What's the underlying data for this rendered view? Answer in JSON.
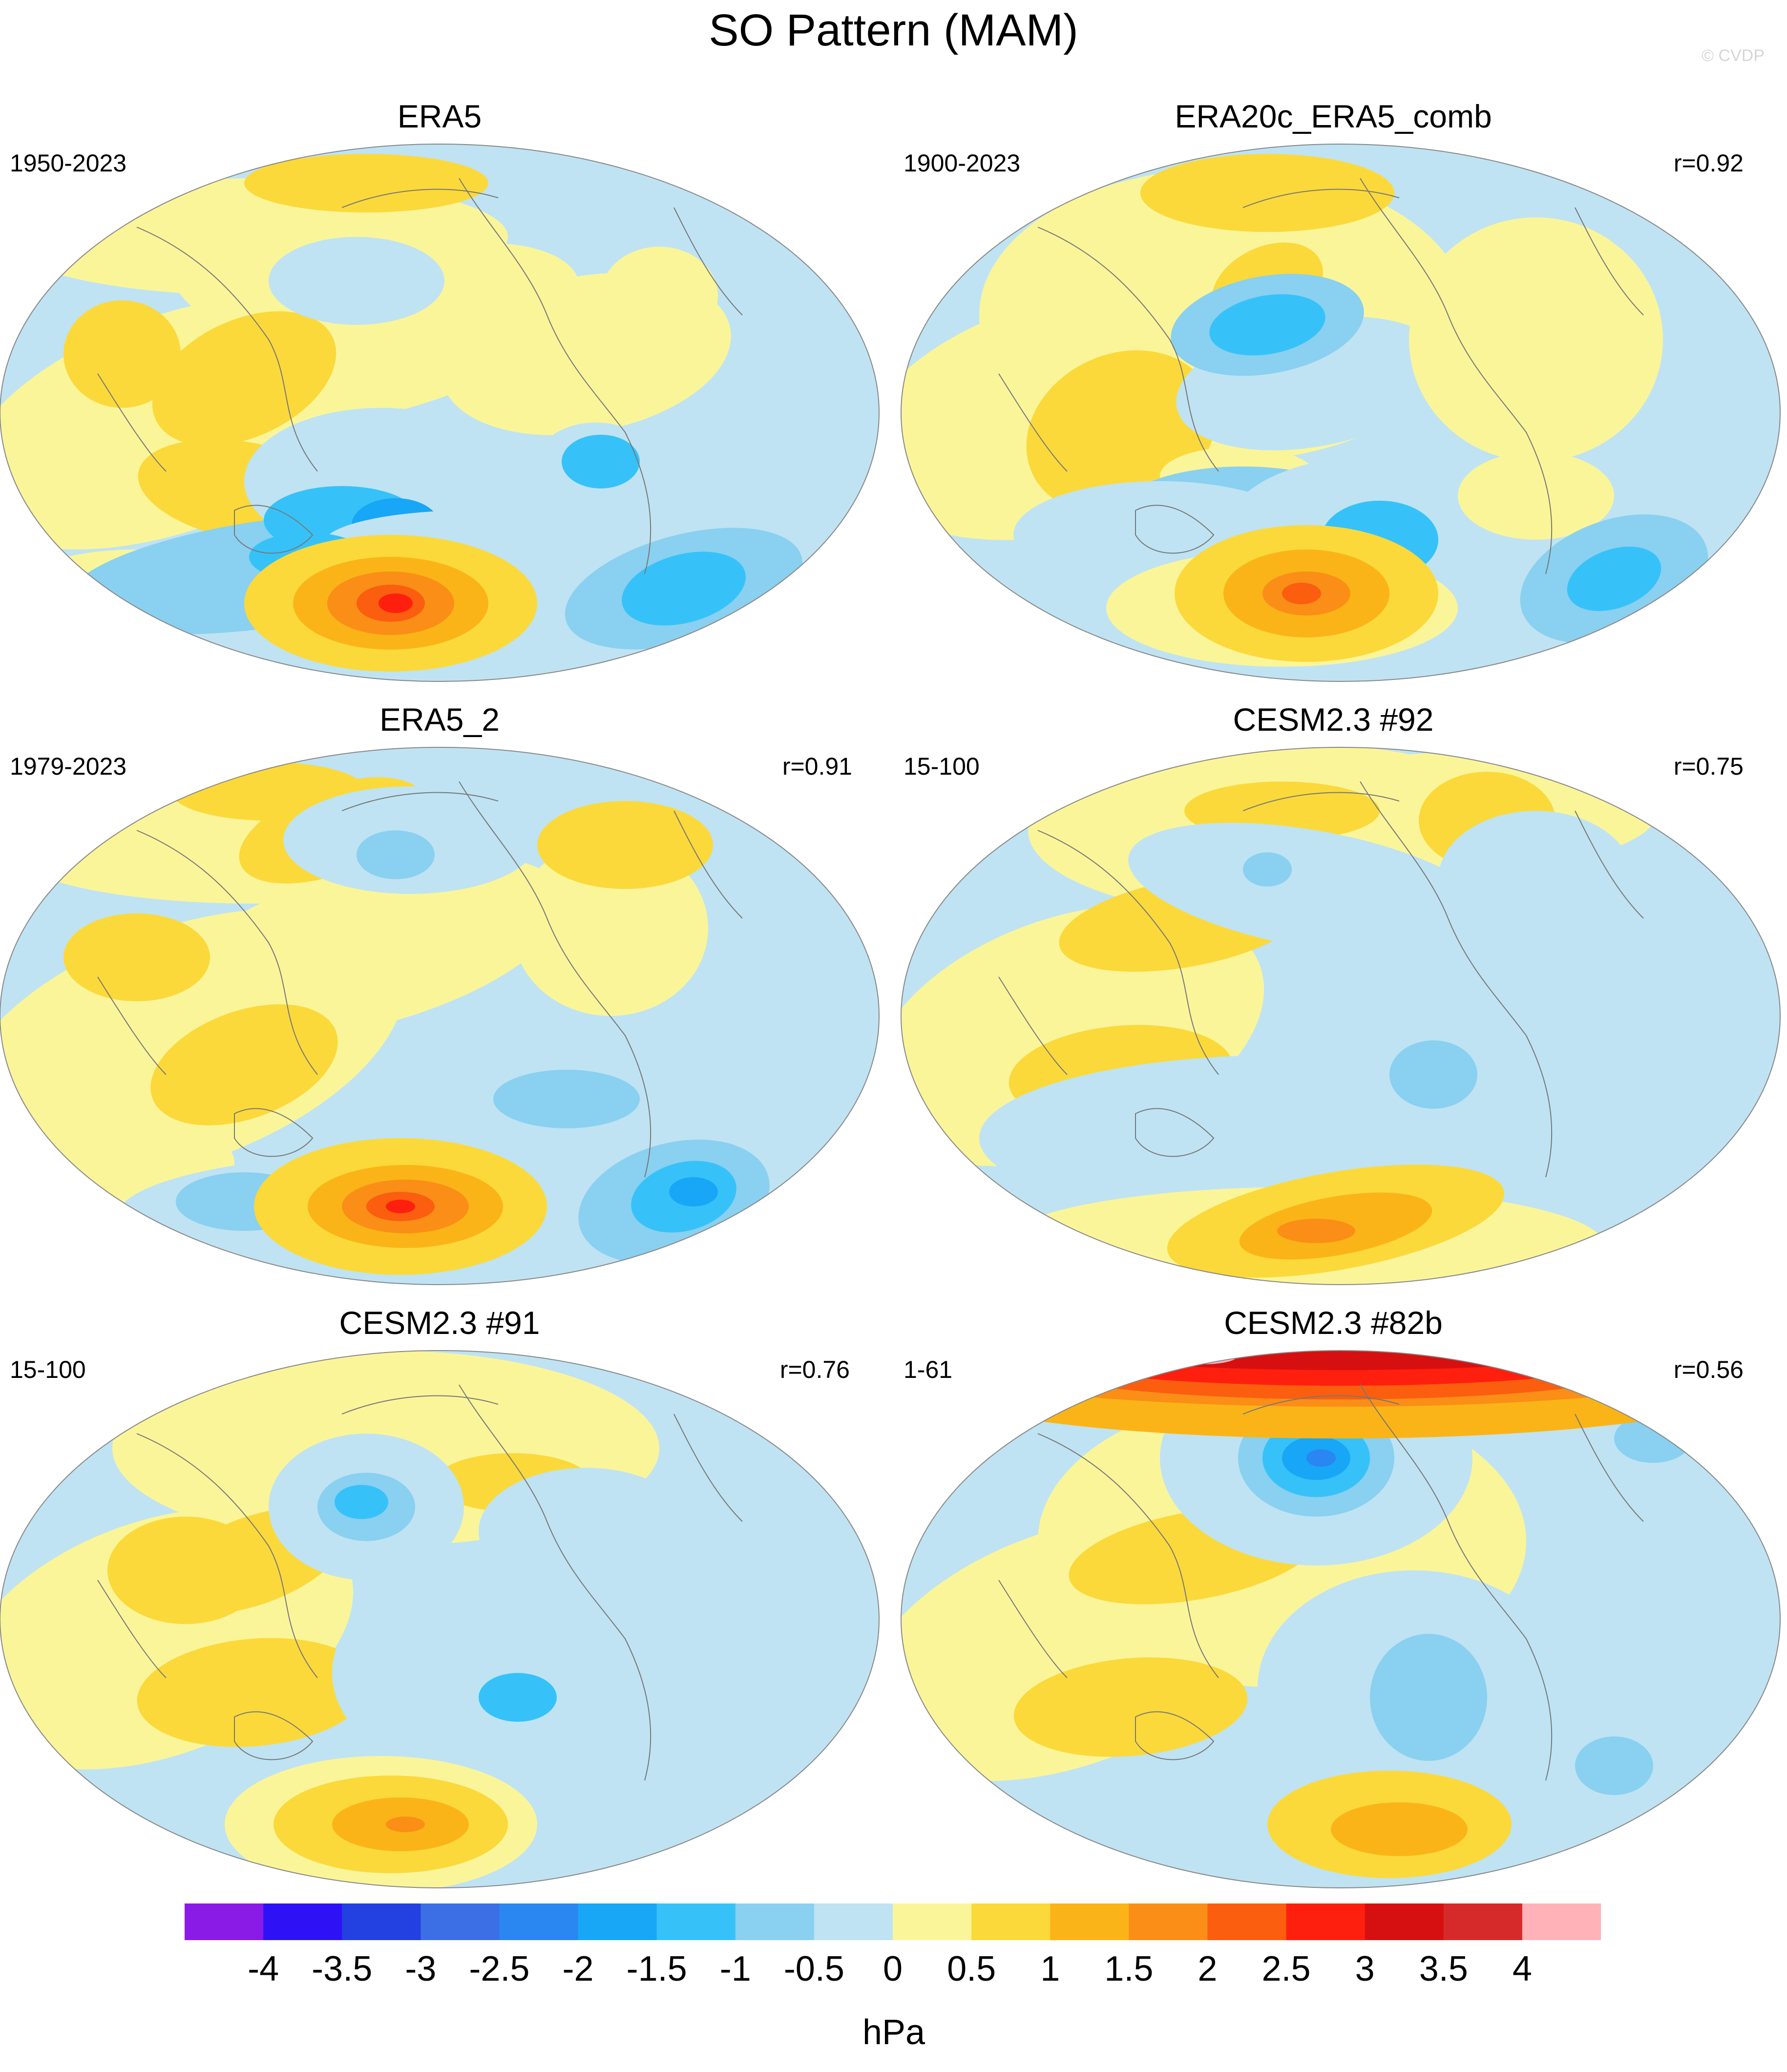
{
  "figure": {
    "title": "SO Pattern (MAM)",
    "credit": "© CVDP"
  },
  "panels": [
    {
      "title": "ERA5",
      "period": "1950-2023",
      "corr": ""
    },
    {
      "title": "ERA20c_ERA5_comb",
      "period": "1900-2023",
      "corr": "r=0.92"
    },
    {
      "title": "ERA5_2",
      "period": "1979-2023",
      "corr": "r=0.91"
    },
    {
      "title": "CESM2.3 #92",
      "period": "15-100",
      "corr": "r=0.75"
    },
    {
      "title": "CESM2.3 #91",
      "period": "15-100",
      "corr": "r=0.76"
    },
    {
      "title": "CESM2.3 #82b",
      "period": "1-61",
      "corr": "r=0.56"
    }
  ],
  "colorbar": {
    "units": "hPa",
    "labels": [
      "-4",
      "-3.5",
      "-3",
      "-2.5",
      "-2",
      "-1.5",
      "-1",
      "-0.5",
      "0",
      "0.5",
      "1",
      "1.5",
      "2",
      "2.5",
      "3",
      "3.5",
      "4"
    ],
    "colors": [
      "#8a1ae6",
      "#2e12f5",
      "#2340e0",
      "#3c6ee6",
      "#2a86f0",
      "#18a6f6",
      "#36c2f8",
      "#8ad0f0",
      "#bfe3f3",
      "#fbf59a",
      "#fbd93a",
      "#fbb417",
      "#fb8e17",
      "#fb5e0f",
      "#ff1f0f",
      "#d61010",
      "#d62a2a",
      "#ffb3b8"
    ]
  },
  "colors": {
    "ocean_neutral": "#bfe3f3",
    "land_neutral": "#fbf59a",
    "coast": "#777777"
  }
}
